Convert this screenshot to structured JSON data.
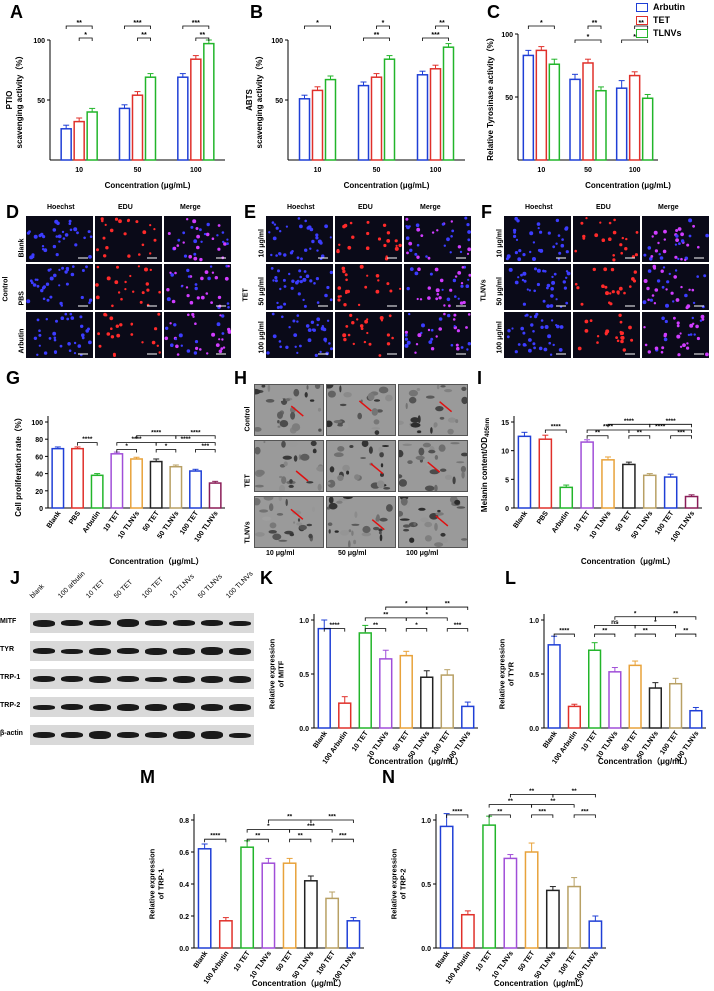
{
  "panel_letters": [
    "A",
    "B",
    "C",
    "D",
    "E",
    "F",
    "G",
    "H",
    "I",
    "J",
    "K",
    "L",
    "M",
    "N"
  ],
  "colors": {
    "blue": "#1f3fd6",
    "red": "#e0302a",
    "green": "#22b52a",
    "purple": "#a04ed8",
    "orange": "#e8a23a",
    "black": "#222222",
    "khaki": "#b8a064",
    "maroon": "#8a1c57"
  },
  "legend": [
    "Arbutin",
    "TET",
    "TLNVs"
  ],
  "concentration_axis": "Concentration (μg/mL)",
  "chart_data": [
    {
      "id": "A",
      "type": "bar",
      "categories": [
        "10",
        "50",
        "100"
      ],
      "series": [
        {
          "name": "Arbutin",
          "values": [
            26,
            43,
            69
          ],
          "err": [
            3,
            3,
            3
          ]
        },
        {
          "name": "TET",
          "values": [
            32,
            54,
            84
          ],
          "err": [
            3,
            3,
            3
          ]
        },
        {
          "name": "TLNVs",
          "values": [
            40,
            69,
            97
          ],
          "err": [
            3,
            3,
            3
          ]
        }
      ],
      "ylabel_lines": [
        "PTIO",
        "scavenging activity（%）"
      ],
      "xlabel": "Concentration (μg/mL)",
      "ylim": [
        0,
        100
      ],
      "yticks": [
        50,
        100
      ],
      "sig": [
        {
          "label": "**",
          "x1": 0,
          "x2": 2
        },
        {
          "label": "*",
          "x1": 1,
          "x2": 2
        },
        {
          "label": "***",
          "x1": 3,
          "x2": 5
        },
        {
          "label": "**",
          "x1": 4,
          "x2": 5
        },
        {
          "label": "***",
          "x1": 6,
          "x2": 8
        },
        {
          "label": "**",
          "x1": 7,
          "x2": 8
        }
      ]
    },
    {
      "id": "B",
      "type": "bar",
      "categories": [
        "10",
        "50",
        "100"
      ],
      "series": [
        {
          "name": "Arbutin",
          "values": [
            51,
            62,
            71
          ],
          "err": [
            3,
            3,
            3
          ]
        },
        {
          "name": "TET",
          "values": [
            58,
            69,
            76
          ],
          "err": [
            3,
            3,
            3
          ]
        },
        {
          "name": "TLNVs",
          "values": [
            67,
            84,
            94
          ],
          "err": [
            3,
            3,
            3
          ]
        }
      ],
      "ylabel_lines": [
        "ABTS",
        "scavenging activity（%）"
      ],
      "xlabel": "Concentration (μg/mL)",
      "ylim": [
        0,
        100
      ],
      "yticks": [
        50,
        100
      ],
      "sig": [
        {
          "label": "*",
          "x1": 0,
          "x2": 2
        },
        {
          "label": "**",
          "x1": 3,
          "x2": 5
        },
        {
          "label": "*",
          "x1": 4,
          "x2": 5
        },
        {
          "label": "***",
          "x1": 6,
          "x2": 8
        },
        {
          "label": "**",
          "x1": 7,
          "x2": 8
        }
      ]
    },
    {
      "id": "C",
      "type": "bar",
      "categories": [
        "10",
        "50",
        "100"
      ],
      "series": [
        {
          "name": "Arbutin",
          "values": [
            83,
            64,
            57
          ],
          "err": [
            4,
            4,
            6
          ]
        },
        {
          "name": "TET",
          "values": [
            87,
            77,
            67
          ],
          "err": [
            3,
            3,
            3
          ]
        },
        {
          "name": "TLNVs",
          "values": [
            76,
            55,
            49
          ],
          "err": [
            4,
            3,
            3
          ]
        }
      ],
      "ylabel_lines": [
        "Relative Tyrosinase activity（%）"
      ],
      "xlabel": "Concentration (μg/mL)",
      "ylim": [
        0,
        100
      ],
      "yticks": [
        50,
        100
      ],
      "sig": [
        {
          "label": "*",
          "x1": 0,
          "x2": 2
        },
        {
          "label": "*",
          "x1": 3,
          "x2": 5
        },
        {
          "label": "**",
          "x1": 4,
          "x2": 5
        },
        {
          "label": "*",
          "x1": 6,
          "x2": 8
        },
        {
          "label": "**",
          "x1": 7,
          "x2": 8
        }
      ]
    },
    {
      "id": "G",
      "type": "bar",
      "categories": [
        "Blank",
        "PBS",
        "Arbutin",
        "10 TET",
        "10 TLNVs",
        "50 TET",
        "50 TLNVs",
        "100 TET",
        "100 TLNVs"
      ],
      "values": [
        69,
        69,
        38,
        63,
        57,
        54,
        48,
        43,
        29
      ],
      "err": [
        2,
        2,
        2,
        2,
        2,
        3,
        2,
        2,
        2
      ],
      "colors": [
        "#1f3fd6",
        "#e0302a",
        "#22b52a",
        "#a04ed8",
        "#e8a23a",
        "#222222",
        "#b8a064",
        "#1f3fd6",
        "#8a1c57"
      ],
      "ylabel": "Cell proliferation rate（%）",
      "xlabel": "Concentration（μg/mL）",
      "ylim": [
        0,
        100
      ],
      "yticks": [
        0,
        20,
        40,
        60,
        80,
        100
      ],
      "sig": [
        {
          "label": "****",
          "x1": 1,
          "x2": 2,
          "y": 76
        },
        {
          "label": "*",
          "x1": 3,
          "x2": 4,
          "y": 68
        },
        {
          "label": "*",
          "x1": 5,
          "x2": 6,
          "y": 68
        },
        {
          "label": "***",
          "x1": 7,
          "x2": 8,
          "y": 68
        },
        {
          "label": "****",
          "x1": 3,
          "x2": 5,
          "y": 76
        },
        {
          "label": "****",
          "x1": 5,
          "x2": 8,
          "y": 76
        },
        {
          "label": "****",
          "x1": 4,
          "x2": 6,
          "y": 84
        },
        {
          "label": "****",
          "x1": 6,
          "x2": 8,
          "y": 84
        }
      ]
    },
    {
      "id": "I",
      "type": "bar",
      "categories": [
        "Blank",
        "PBS",
        "Arbutin",
        "10 TET",
        "10 TLNVs",
        "50 TET",
        "50 TLNVs",
        "100 TET",
        "100 TLNVs"
      ],
      "values": [
        12.5,
        12.0,
        3.6,
        11.5,
        8.4,
        7.6,
        5.7,
        5.4,
        2.0
      ],
      "err": [
        0.7,
        0.7,
        0.4,
        0.4,
        0.5,
        0.4,
        0.3,
        0.5,
        0.3
      ],
      "colors": [
        "#1f3fd6",
        "#e0302a",
        "#22b52a",
        "#a04ed8",
        "#e8a23a",
        "#222222",
        "#b8a064",
        "#1f3fd6",
        "#8a1c57"
      ],
      "ylabel": "Melanin content/OD",
      "ylabel_sub": "405nm",
      "xlabel": "Concentration（μg/mL）",
      "ylim": [
        0,
        15
      ],
      "yticks": [
        0,
        5,
        10,
        15
      ],
      "sig": [
        {
          "label": "****",
          "x1": 1,
          "x2": 2,
          "y": 13.6
        },
        {
          "label": "**",
          "x1": 3,
          "x2": 4,
          "y": 12.6
        },
        {
          "label": "**",
          "x1": 5,
          "x2": 6,
          "y": 12.6
        },
        {
          "label": "***",
          "x1": 7,
          "x2": 8,
          "y": 12.6
        },
        {
          "label": "****",
          "x1": 3,
          "x2": 5,
          "y": 13.6
        },
        {
          "label": "****",
          "x1": 5,
          "x2": 8,
          "y": 13.6
        },
        {
          "label": "****",
          "x1": 4,
          "x2": 6,
          "y": 14.6
        },
        {
          "label": "****",
          "x1": 6,
          "x2": 8,
          "y": 14.6
        }
      ]
    },
    {
      "id": "K",
      "type": "bar",
      "categories": [
        "Blank",
        "100 Arbutin",
        "10 TET",
        "10 TLNVs",
        "50 TET",
        "50 TLNVs",
        "100 TET",
        "100 TLNVs"
      ],
      "values": [
        0.92,
        0.23,
        0.88,
        0.64,
        0.67,
        0.47,
        0.49,
        0.2
      ],
      "err": [
        0.08,
        0.06,
        0.07,
        0.08,
        0.04,
        0.06,
        0.05,
        0.04
      ],
      "colors": [
        "#1f3fd6",
        "#e0302a",
        "#22b52a",
        "#a04ed8",
        "#e8a23a",
        "#222222",
        "#b8a064",
        "#1f3fd6"
      ],
      "ylabel_lines": [
        "Relative expression",
        "of MITF"
      ],
      "xlabel": "Concentration（μg/mL）",
      "ylim": [
        0,
        1.0
      ],
      "yticks": [
        0.0,
        0.5,
        1.0
      ],
      "sig": [
        {
          "label": "****",
          "x1": 0,
          "x2": 1,
          "y": 0.92
        },
        {
          "label": "**",
          "x1": 2,
          "x2": 3,
          "y": 0.92
        },
        {
          "label": "*",
          "x1": 4,
          "x2": 5,
          "y": 0.92
        },
        {
          "label": "***",
          "x1": 6,
          "x2": 7,
          "y": 0.92
        },
        {
          "label": "**",
          "x1": 2,
          "x2": 4,
          "y": 1.02
        },
        {
          "label": "*",
          "x1": 4,
          "x2": 6,
          "y": 1.02
        },
        {
          "label": "*",
          "x1": 3,
          "x2": 5,
          "y": 1.12
        },
        {
          "label": "**",
          "x1": 5,
          "x2": 7,
          "y": 1.12
        }
      ]
    },
    {
      "id": "L",
      "type": "bar",
      "categories": [
        "Blank",
        "100 Arbutin",
        "10 TET",
        "10 TLNVs",
        "50 TET",
        "50 TLNVs",
        "100 TET",
        "100 TLNVs"
      ],
      "values": [
        0.77,
        0.2,
        0.72,
        0.52,
        0.58,
        0.37,
        0.41,
        0.16
      ],
      "err": [
        0.08,
        0.02,
        0.07,
        0.04,
        0.04,
        0.05,
        0.05,
        0.03
      ],
      "colors": [
        "#1f3fd6",
        "#e0302a",
        "#22b52a",
        "#a04ed8",
        "#e8a23a",
        "#222222",
        "#b8a064",
        "#1f3fd6"
      ],
      "ylabel_lines": [
        "Relative expression",
        "of TYR"
      ],
      "xlabel": "Concentration（μg/mL）",
      "ylim": [
        0,
        1.0
      ],
      "yticks": [
        0.0,
        0.5,
        1.0
      ],
      "sig": [
        {
          "label": "****",
          "x1": 0,
          "x2": 1,
          "y": 0.87
        },
        {
          "label": "**",
          "x1": 2,
          "x2": 3,
          "y": 0.87
        },
        {
          "label": "**",
          "x1": 4,
          "x2": 5,
          "y": 0.87
        },
        {
          "label": "**",
          "x1": 6,
          "x2": 7,
          "y": 0.87
        },
        {
          "label": "ns",
          "x1": 2,
          "x2": 4,
          "y": 0.95
        },
        {
          "label": "*",
          "x1": 4,
          "x2": 6,
          "y": 0.95
        },
        {
          "label": "*",
          "x1": 3,
          "x2": 5,
          "y": 1.03
        },
        {
          "label": "**",
          "x1": 5,
          "x2": 7,
          "y": 1.03
        }
      ]
    },
    {
      "id": "M",
      "type": "bar",
      "categories": [
        "Blank",
        "100 Arbutin",
        "10 TET",
        "10 TLNVs",
        "50 TET",
        "50 TLNVs",
        "100 TET",
        "100 TLNVs"
      ],
      "values": [
        0.62,
        0.17,
        0.63,
        0.53,
        0.53,
        0.42,
        0.31,
        0.17
      ],
      "err": [
        0.03,
        0.02,
        0.04,
        0.03,
        0.03,
        0.03,
        0.04,
        0.02
      ],
      "colors": [
        "#1f3fd6",
        "#e0302a",
        "#22b52a",
        "#a04ed8",
        "#e8a23a",
        "#222222",
        "#b8a064",
        "#1f3fd6"
      ],
      "ylabel_lines": [
        "Relative expression",
        "of TRP-1"
      ],
      "xlabel": "Concentration（μg/mL）",
      "ylim": [
        0,
        0.8
      ],
      "yticks": [
        0.0,
        0.2,
        0.4,
        0.6,
        0.8
      ],
      "sig": [
        {
          "label": "****",
          "x1": 0,
          "x2": 1,
          "y": 0.68
        },
        {
          "label": "**",
          "x1": 2,
          "x2": 3,
          "y": 0.68
        },
        {
          "label": "**",
          "x1": 4,
          "x2": 5,
          "y": 0.68
        },
        {
          "label": "***",
          "x1": 6,
          "x2": 7,
          "y": 0.68
        },
        {
          "label": "*",
          "x1": 2,
          "x2": 4,
          "y": 0.74
        },
        {
          "label": "***",
          "x1": 4,
          "x2": 6,
          "y": 0.74
        },
        {
          "label": "**",
          "x1": 3,
          "x2": 5,
          "y": 0.8
        },
        {
          "label": "***",
          "x1": 5,
          "x2": 7,
          "y": 0.8
        }
      ]
    },
    {
      "id": "N",
      "type": "bar",
      "categories": [
        "Blank",
        "100 Arbutin",
        "10 TET",
        "10 TLNVs",
        "50 TET",
        "50 TLNVs",
        "100 TET",
        "100 TLNVs"
      ],
      "values": [
        0.95,
        0.26,
        0.96,
        0.7,
        0.75,
        0.45,
        0.48,
        0.21
      ],
      "err": [
        0.1,
        0.03,
        0.07,
        0.03,
        0.07,
        0.03,
        0.07,
        0.04
      ],
      "colors": [
        "#1f3fd6",
        "#e0302a",
        "#22b52a",
        "#a04ed8",
        "#e8a23a",
        "#222222",
        "#b8a064",
        "#1f3fd6"
      ],
      "ylabel_lines": [
        "Relative expression",
        "of TRP-2"
      ],
      "xlabel": "Concentration（μg/mL）",
      "ylim": [
        0,
        1.0
      ],
      "yticks": [
        0.0,
        0.5,
        1.0
      ],
      "sig": [
        {
          "label": "****",
          "x1": 0,
          "x2": 1,
          "y": 1.04
        },
        {
          "label": "**",
          "x1": 2,
          "x2": 3,
          "y": 1.04
        },
        {
          "label": "***",
          "x1": 4,
          "x2": 5,
          "y": 1.04
        },
        {
          "label": "***",
          "x1": 6,
          "x2": 7,
          "y": 1.04
        },
        {
          "label": "**",
          "x1": 2,
          "x2": 4,
          "y": 1.12
        },
        {
          "label": "**",
          "x1": 4,
          "x2": 6,
          "y": 1.12
        },
        {
          "label": "**",
          "x1": 3,
          "x2": 5,
          "y": 1.2
        },
        {
          "label": "**",
          "x1": 5,
          "x2": 7,
          "y": 1.2
        }
      ]
    }
  ],
  "micro": {
    "column_headers": [
      "Hoechst",
      "EDU",
      "Merge"
    ],
    "D": {
      "group": "Control",
      "rows": [
        "Blank",
        "PBS",
        "Arbutin"
      ]
    },
    "E": {
      "group": "TET",
      "rows": [
        "10 μg/ml",
        "50 μg/ml",
        "100 μg/ml"
      ]
    },
    "F": {
      "group": "TLNVs",
      "rows": [
        "10 μg/ml",
        "50 μg/ml",
        "100 μg/ml"
      ]
    }
  },
  "tem": {
    "rows": [
      "Control",
      "TET",
      "TLNVs"
    ],
    "cols": [
      "10 μg/ml",
      "50 μg/ml",
      "100 μg/ml"
    ]
  },
  "blot": {
    "lanes": [
      "blank",
      "100 arbutin",
      "10 TET",
      "50 TET",
      "100 TET",
      "10 TLNVs",
      "50 TLNVs",
      "100 TLNVs"
    ],
    "proteins": [
      "MITF",
      "TYR",
      "TRP-1",
      "TRP-2",
      "β-actin"
    ]
  }
}
